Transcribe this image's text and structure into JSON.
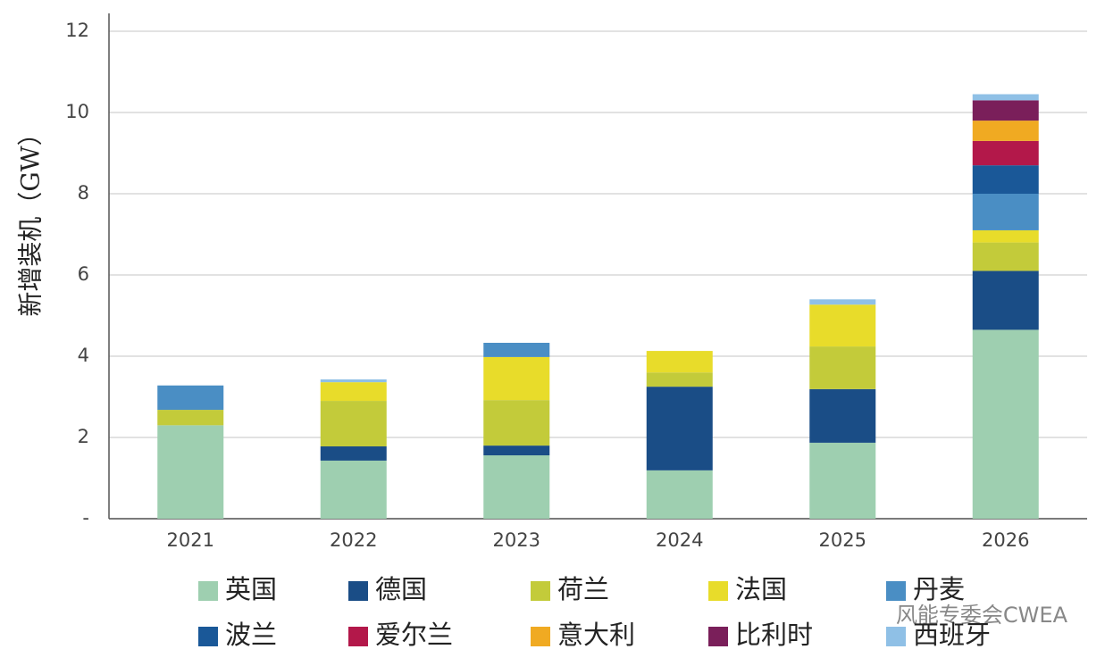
{
  "chart_data": {
    "type": "stacked-bar",
    "y_label": "新增装机（GW）",
    "watermark": "风能专委会CWEA",
    "categories": [
      "2021",
      "2022",
      "2023",
      "2024",
      "2025",
      "2026"
    ],
    "ylim": [
      0,
      12
    ],
    "yticks": [
      {
        "value": 0,
        "label": "-"
      },
      2,
      4,
      6,
      8,
      10,
      12
    ],
    "grid": true,
    "series": [
      {
        "name": "英国",
        "color": "#9ecfb0",
        "values": [
          2.3,
          1.43,
          1.56,
          1.19,
          1.87,
          4.65
        ]
      },
      {
        "name": "德国",
        "color": "#1a4d86",
        "values": [
          null,
          0.35,
          0.24,
          2.06,
          1.32,
          1.45
        ]
      },
      {
        "name": "荷兰",
        "color": "#c3cb3a",
        "values": [
          0.38,
          1.12,
          1.12,
          0.35,
          1.05,
          0.7
        ]
      },
      {
        "name": "法国",
        "color": "#e8dc2a",
        "values": [
          null,
          0.46,
          1.06,
          0.53,
          1.03,
          0.3
        ]
      },
      {
        "name": "丹麦",
        "color": "#4a8ec4",
        "values": [
          0.6,
          null,
          0.35,
          null,
          null,
          0.9
        ]
      },
      {
        "name": "波兰",
        "color": "#1a5898",
        "values": [
          null,
          null,
          null,
          null,
          null,
          0.7
        ]
      },
      {
        "name": "爱尔兰",
        "color": "#b3184a",
        "values": [
          null,
          null,
          null,
          null,
          null,
          0.6
        ]
      },
      {
        "name": "意大利",
        "color": "#f0aa22",
        "values": [
          null,
          null,
          null,
          null,
          null,
          0.5
        ]
      },
      {
        "name": "比利时",
        "color": "#7a1f5a",
        "values": [
          null,
          null,
          null,
          null,
          null,
          0.5
        ]
      },
      {
        "name": "西班牙",
        "color": "#8fc0e6",
        "values": [
          null,
          0.07,
          null,
          null,
          0.13,
          0.15
        ]
      }
    ]
  }
}
